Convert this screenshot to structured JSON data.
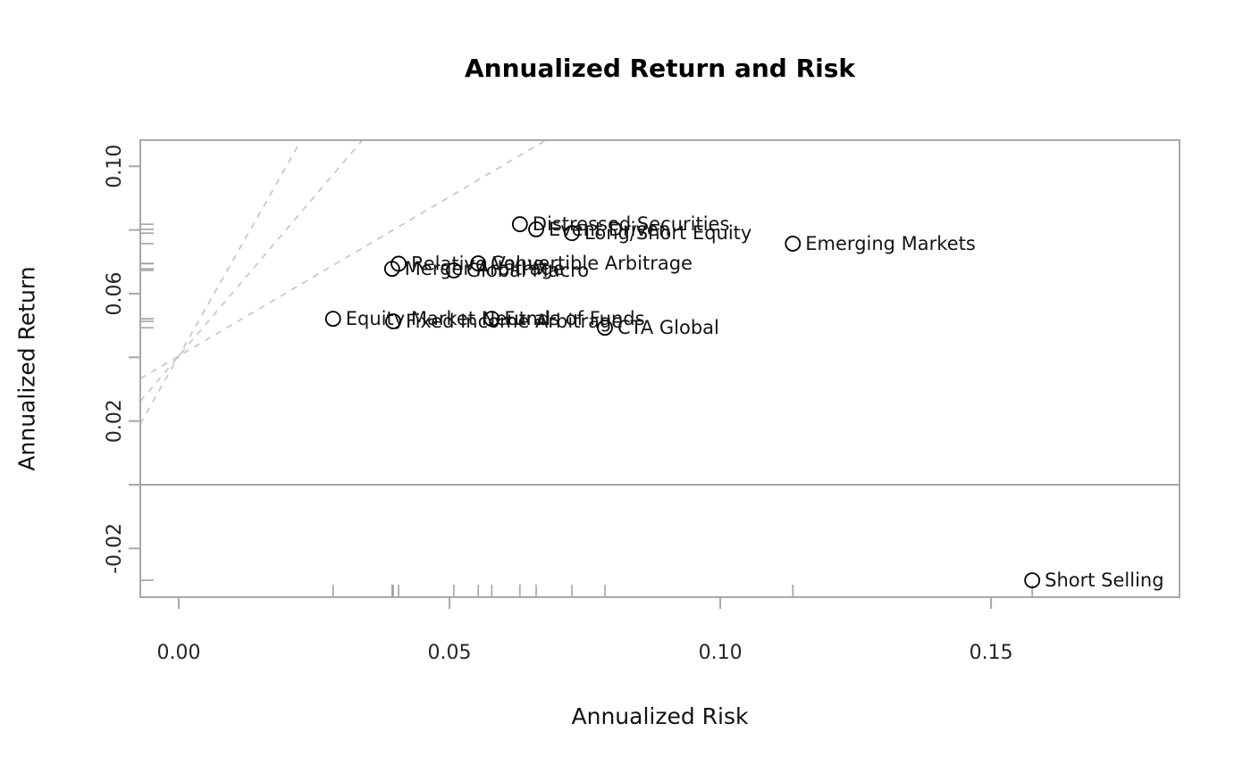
{
  "title": "Annualized Return and Risk",
  "xlabel": "Annualized Risk",
  "ylabel": "Annualized Return",
  "chart_data": {
    "type": "scatter",
    "title": "Annualized Return and Risk",
    "xlabel": "Annualized Risk",
    "ylabel": "Annualized Return",
    "xlim": [
      -0.0071,
      0.1848
    ],
    "ylim": [
      -0.0353,
      0.1082
    ],
    "grid": false,
    "x_ticks": [
      {
        "v": 0.0,
        "label": "0.00"
      },
      {
        "v": 0.05,
        "label": "0.05"
      },
      {
        "v": 0.1,
        "label": "0.10"
      },
      {
        "v": 0.15,
        "label": "0.15"
      }
    ],
    "y_ticks": [
      {
        "v": -0.02,
        "label": "-0.02"
      },
      {
        "v": 0.0,
        "label": ""
      },
      {
        "v": 0.02,
        "label": "0.02"
      },
      {
        "v": 0.04,
        "label": ""
      },
      {
        "v": 0.06,
        "label": "0.06"
      },
      {
        "v": 0.08,
        "label": ""
      },
      {
        "v": 0.1,
        "label": "0.10"
      }
    ],
    "points": [
      {
        "label": "Equity Market Neutral",
        "x": 0.0285,
        "y": 0.0521
      },
      {
        "label": "Merger Arbitrage",
        "x": 0.0394,
        "y": 0.0678
      },
      {
        "label": "Relative Value",
        "x": 0.0406,
        "y": 0.0694
      },
      {
        "label": "Fixed Income Arbitrage",
        "x": 0.0396,
        "y": 0.0513
      },
      {
        "label": "Global Macro",
        "x": 0.0508,
        "y": 0.0673
      },
      {
        "label": "Convertible Arbitrage",
        "x": 0.0553,
        "y": 0.0695
      },
      {
        "label": "Funds of Funds",
        "x": 0.0578,
        "y": 0.0521
      },
      {
        "label": "Distressed Securities",
        "x": 0.063,
        "y": 0.0818
      },
      {
        "label": "Event Driven",
        "x": 0.066,
        "y": 0.0802
      },
      {
        "label": "Long/Short Equity",
        "x": 0.0726,
        "y": 0.079
      },
      {
        "label": "CTA Global",
        "x": 0.0787,
        "y": 0.0493
      },
      {
        "label": "Emerging Markets",
        "x": 0.1134,
        "y": 0.0757
      },
      {
        "label": "Short Selling",
        "x": 0.1576,
        "y": -0.03
      }
    ],
    "rug": true,
    "zero_line_y": 0.0,
    "sharpe_lines": {
      "intercept": 0.0404,
      "slopes": [
        1,
        2,
        3
      ]
    },
    "colors": {
      "background": "#ffffff",
      "box": "#a8a8a8",
      "tick": "#a8a8a8",
      "rug": "#9e9e9e",
      "zero_line": "#8f8f8f",
      "sharpe_line": "#c9c9c9",
      "point": "#000000",
      "point_label": "#141414",
      "tick_label": "#262626"
    }
  }
}
